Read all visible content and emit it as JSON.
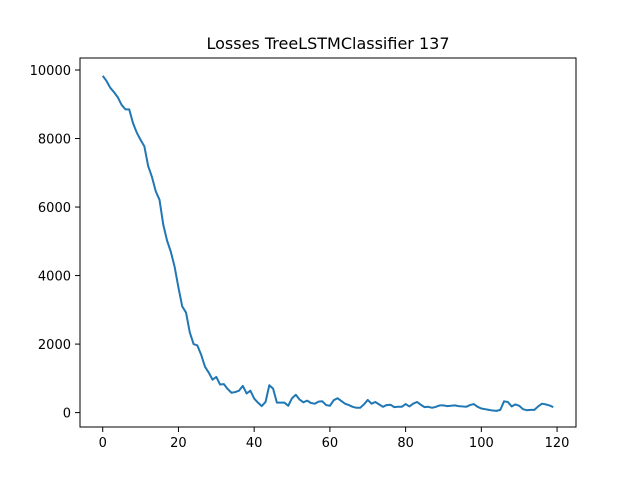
{
  "chart_data": {
    "type": "line",
    "title": "Losses TreeLSTMClassifier 137",
    "xlabel": "",
    "ylabel": "",
    "xlim": [
      -6,
      125
    ],
    "ylim": [
      -420,
      10350
    ],
    "xticks": [
      0,
      20,
      40,
      60,
      80,
      100,
      120
    ],
    "yticks": [
      0,
      2000,
      4000,
      6000,
      8000,
      10000
    ],
    "grid": false,
    "legend": "none",
    "line_color": "#1f77b4",
    "series": [
      {
        "x": [
          0,
          1,
          2,
          3,
          4,
          5,
          6,
          7,
          8,
          9,
          10,
          11,
          12,
          13,
          14,
          15,
          16,
          17,
          18,
          19,
          20,
          21,
          22,
          23,
          24,
          25,
          26,
          27,
          28,
          29,
          30,
          31,
          32,
          33,
          34,
          35,
          36,
          37,
          38,
          39,
          40,
          41,
          42,
          43,
          44,
          45,
          46,
          47,
          48,
          49,
          50,
          51,
          52,
          53,
          54,
          55,
          56,
          57,
          58,
          59,
          60,
          61,
          62,
          63,
          64,
          65,
          66,
          67,
          68,
          69,
          70,
          71,
          72,
          73,
          74,
          75,
          76,
          77,
          78,
          79,
          80,
          81,
          82,
          83,
          84,
          85,
          86,
          87,
          88,
          89,
          90,
          91,
          92,
          93,
          94,
          95,
          96,
          97,
          98,
          99,
          100,
          101,
          102,
          103,
          104,
          105,
          106,
          107,
          108,
          109,
          110,
          111,
          112,
          113,
          114,
          115,
          116,
          117,
          118,
          119
        ],
        "values": [
          9830,
          9680,
          9480,
          9350,
          9200,
          8980,
          8850,
          8850,
          8450,
          8170,
          7960,
          7770,
          7200,
          6880,
          6460,
          6210,
          5480,
          5020,
          4690,
          4250,
          3650,
          3100,
          2920,
          2340,
          2000,
          1960,
          1690,
          1340,
          1170,
          960,
          1040,
          820,
          830,
          690,
          580,
          600,
          640,
          780,
          560,
          640,
          410,
          290,
          190,
          310,
          800,
          700,
          290,
          290,
          290,
          200,
          420,
          520,
          380,
          300,
          350,
          280,
          260,
          320,
          330,
          220,
          200,
          360,
          420,
          340,
          260,
          220,
          170,
          140,
          140,
          240,
          370,
          260,
          310,
          240,
          170,
          220,
          230,
          160,
          170,
          170,
          250,
          180,
          260,
          310,
          230,
          160,
          170,
          140,
          170,
          210,
          210,
          190,
          200,
          210,
          190,
          180,
          170,
          220,
          250,
          170,
          120,
          100,
          80,
          60,
          50,
          80,
          330,
          310,
          180,
          240,
          200,
          100,
          70,
          80,
          80,
          180,
          260,
          240,
          210,
          160
        ]
      }
    ]
  }
}
